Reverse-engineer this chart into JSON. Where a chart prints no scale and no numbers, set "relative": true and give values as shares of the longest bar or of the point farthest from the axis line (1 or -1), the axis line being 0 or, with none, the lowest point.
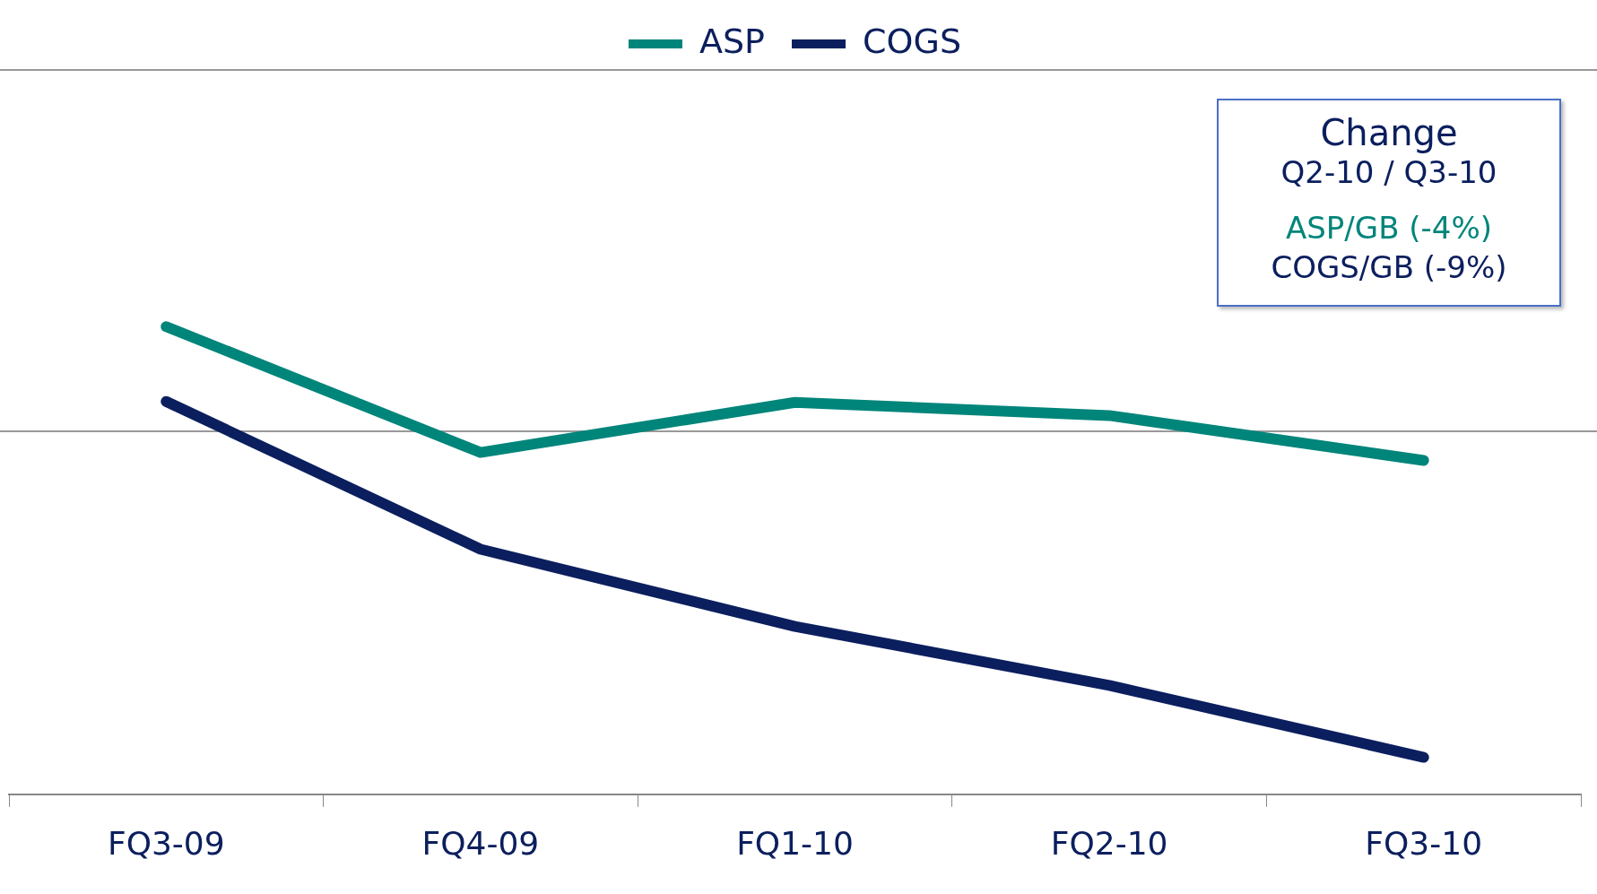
{
  "chart_data": {
    "type": "line",
    "relative": true,
    "categories": [
      "FQ3-09",
      "FQ4-09",
      "FQ1-10",
      "FQ2-10",
      "FQ3-10"
    ],
    "series": [
      {
        "name": "ASP",
        "color": "#00857a",
        "values": [
          1,
          0.731,
          0.838,
          0.81,
          0.714
        ]
      },
      {
        "name": "COGS",
        "color": "#0b1f5e",
        "values": [
          0.84,
          0.524,
          0.359,
          0.233,
          0.079
        ]
      }
    ],
    "annotations": [
      "Change",
      "Q2-10 / Q3-10",
      "ASP/GB (-4%)",
      "COGS/GB (-9%)"
    ],
    "ref_lines": [
      {
        "axis": "y",
        "value": 0.776,
        "color": "#999999"
      },
      {
        "axis": "y",
        "value": 1.549,
        "color": "#999999"
      }
    ],
    "legend": "top",
    "marker": "none",
    "line_style": "solid"
  }
}
